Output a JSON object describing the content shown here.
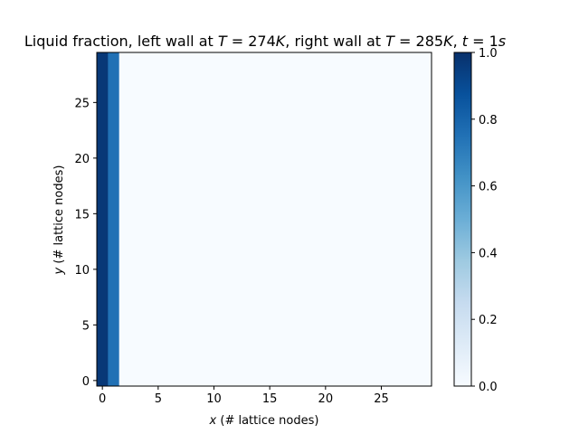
{
  "chart_data": {
    "type": "heatmap",
    "title_parts": {
      "p1": "Liquid fraction, left wall at ",
      "p2": "T",
      "p3": " = 274",
      "p4": "K",
      "p5": ", right wall at ",
      "p6": "T",
      "p7": " = 285",
      "p8": "K",
      "p9": ", ",
      "p10": "t",
      "p11": " = 1",
      "p12": "s"
    },
    "xlabel_var": "x",
    "xlabel_rest": " (# lattice nodes)",
    "ylabel_var": "y",
    "ylabel_rest": " (# lattice nodes)",
    "grid_size": [
      30,
      30
    ],
    "column_values": [
      0.97,
      0.75,
      0,
      0,
      0,
      0,
      0,
      0,
      0,
      0,
      0,
      0,
      0,
      0,
      0,
      0,
      0,
      0,
      0,
      0,
      0,
      0,
      0,
      0,
      0,
      0,
      0,
      0,
      0,
      0
    ],
    "xlim": [
      -0.5,
      29.5
    ],
    "ylim": [
      -0.5,
      29.5
    ],
    "xticks": [
      0,
      5,
      10,
      15,
      20,
      25
    ],
    "yticks": [
      0,
      5,
      10,
      15,
      20,
      25
    ],
    "colormap": "Blues",
    "vmin": 0.0,
    "vmax": 1.0,
    "colorbar_ticks": [
      "0.0",
      "0.2",
      "0.4",
      "0.6",
      "0.8",
      "1.0"
    ],
    "colorbar_tick_values": [
      0.0,
      0.2,
      0.4,
      0.6,
      0.8,
      1.0
    ],
    "grid": false
  }
}
